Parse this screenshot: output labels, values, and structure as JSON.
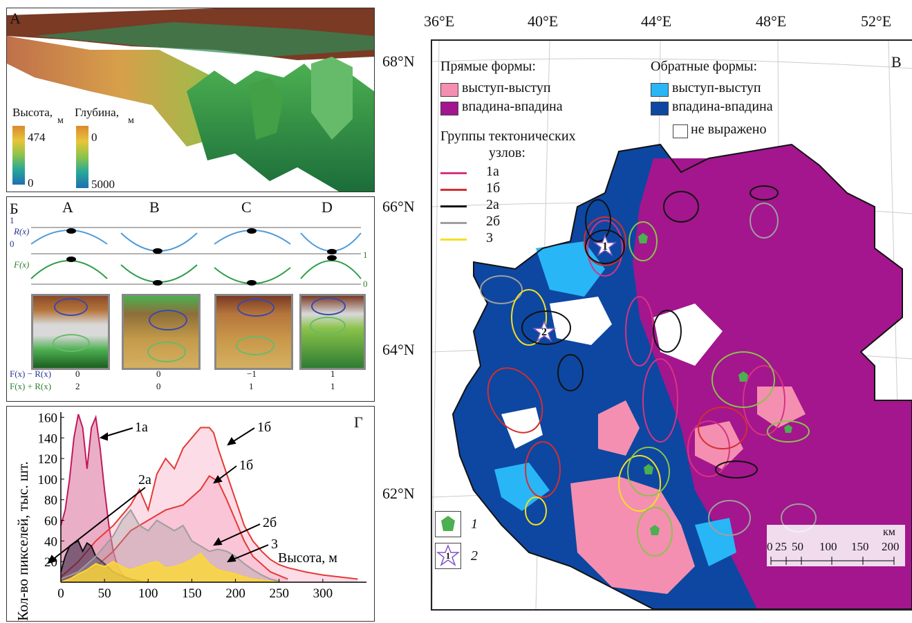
{
  "panel_a": {
    "letter": "А",
    "height_title": "Высота,",
    "height_unit": "м",
    "height_max": "474",
    "height_min": "0",
    "depth_title": "Глубина,",
    "depth_unit": "м",
    "depth_top": "0",
    "depth_bottom": "5000"
  },
  "panel_b": {
    "letter": "Б",
    "columns": [
      "A",
      "B",
      "C",
      "D"
    ],
    "r_label": "R(x)",
    "f_label": "F(x)",
    "tick_1": "1",
    "tick_0": "0",
    "tick_right_1": "1",
    "tick_right_0": "0",
    "row1_label": "F(x) − R(x)",
    "row2_label": "F(x) + R(x)",
    "row1_values": [
      "0",
      "0",
      "−1",
      "1"
    ],
    "row2_values": [
      "2",
      "0",
      "1",
      "1"
    ]
  },
  "panel_g": {
    "letter": "Г",
    "ylabel": "Кол-во пикселей, тыс. шт.",
    "xlabel": "Высота, м",
    "annotations": [
      "1а",
      "2а",
      "1б",
      "1б",
      "2б",
      "3"
    ]
  },
  "chart_data": {
    "type": "area",
    "xlabel": "Высота, м",
    "ylabel": "Кол-во пикселей, тыс. шт.",
    "xlim": [
      0,
      350
    ],
    "ylim": [
      0,
      165
    ],
    "x_ticks": [
      0,
      50,
      100,
      150,
      200,
      250,
      300
    ],
    "y_ticks": [
      20,
      40,
      60,
      80,
      100,
      120,
      140,
      160
    ],
    "series": [
      {
        "name": "1а",
        "color": "#c2185b",
        "x": [
          0,
          5,
          10,
          15,
          20,
          25,
          30,
          35,
          40,
          45,
          50,
          55,
          60,
          65,
          70,
          75,
          80,
          90,
          100
        ],
        "y": [
          55,
          70,
          100,
          140,
          163,
          150,
          110,
          150,
          160,
          130,
          90,
          55,
          30,
          15,
          8,
          4,
          2,
          1,
          0
        ]
      },
      {
        "name": "1б",
        "color": "#e53935",
        "x": [
          0,
          20,
          40,
          60,
          80,
          90,
          100,
          110,
          120,
          130,
          140,
          150,
          160,
          170,
          175,
          180,
          190,
          200,
          210,
          220,
          230,
          240,
          250,
          260,
          280,
          300,
          320,
          340
        ],
        "y": [
          5,
          20,
          40,
          55,
          75,
          90,
          70,
          105,
          120,
          110,
          130,
          140,
          150,
          150,
          145,
          130,
          105,
          80,
          55,
          40,
          30,
          22,
          17,
          14,
          10,
          7,
          5,
          3
        ]
      },
      {
        "name": "1б",
        "color": "#e53935",
        "x": [
          0,
          20,
          40,
          60,
          80,
          100,
          120,
          140,
          160,
          170,
          180,
          190,
          200,
          210,
          220,
          240,
          260
        ],
        "y": [
          2,
          8,
          15,
          30,
          50,
          60,
          70,
          75,
          90,
          103,
          98,
          80,
          60,
          40,
          25,
          10,
          3
        ]
      },
      {
        "name": "2а",
        "color": "#111111",
        "x": [
          0,
          5,
          10,
          15,
          20,
          25,
          30,
          35,
          40,
          50,
          60,
          70,
          80,
          90,
          100
        ],
        "y": [
          10,
          25,
          35,
          38,
          40,
          30,
          38,
          35,
          25,
          18,
          10,
          6,
          3,
          1,
          0
        ]
      },
      {
        "name": "2б",
        "color": "#9e9e9e",
        "x": [
          0,
          20,
          40,
          60,
          70,
          80,
          90,
          100,
          110,
          120,
          130,
          140,
          150,
          160,
          170,
          180,
          190,
          200,
          210,
          220,
          230,
          240,
          250
        ],
        "y": [
          3,
          10,
          25,
          45,
          60,
          70,
          55,
          50,
          60,
          55,
          50,
          55,
          40,
          35,
          30,
          32,
          30,
          25,
          18,
          12,
          7,
          3,
          1
        ]
      },
      {
        "name": "3",
        "color": "#fdd835",
        "x": [
          0,
          10,
          20,
          30,
          40,
          50,
          60,
          70,
          80,
          90,
          100,
          110,
          120,
          130,
          140,
          150,
          160,
          170,
          180,
          190,
          200,
          210,
          220,
          230,
          240,
          250
        ],
        "y": [
          0,
          3,
          8,
          12,
          18,
          15,
          20,
          15,
          12,
          15,
          18,
          20,
          14,
          15,
          18,
          22,
          28,
          18,
          12,
          10,
          8,
          5,
          3,
          2,
          1,
          0
        ]
      }
    ]
  },
  "panel_v": {
    "letter": "В",
    "lon_labels": [
      "36°E",
      "40°E",
      "44°E",
      "48°E",
      "52°E"
    ],
    "lat_labels": [
      "68°N",
      "66°N",
      "64°N",
      "62°N"
    ],
    "legend_direct_title": "Прямые формы:",
    "legend_reverse_title": "Обратные формы:",
    "legend_direct": [
      {
        "label": "выступ-выступ",
        "color": "#f48fb1"
      },
      {
        "label": "впадина-впадина",
        "color": "#a3168d"
      }
    ],
    "legend_reverse": [
      {
        "label": "выступ-выступ",
        "color": "#29b6f6"
      },
      {
        "label": "впадина-впадина",
        "color": "#0d47a1"
      }
    ],
    "legend_none": "не выражено",
    "groups_title_1": "Группы тектонических",
    "groups_title_2": "узлов:",
    "groups": [
      {
        "label": "1а",
        "color": "#d63384"
      },
      {
        "label": "1б",
        "color": "#d32f2f"
      },
      {
        "label": "2а",
        "color": "#111111"
      },
      {
        "label": "2б",
        "color": "#9e9e9e"
      },
      {
        "label": "3",
        "color": "#f4e01f"
      }
    ],
    "marker_1": "1",
    "marker_2": "2",
    "legend_symbol_1": "1",
    "legend_symbol_2": "2",
    "star_1_label": "1",
    "scale_unit": "км",
    "scale_labels": [
      "0",
      "25",
      "50",
      "100",
      "150",
      "200"
    ]
  }
}
